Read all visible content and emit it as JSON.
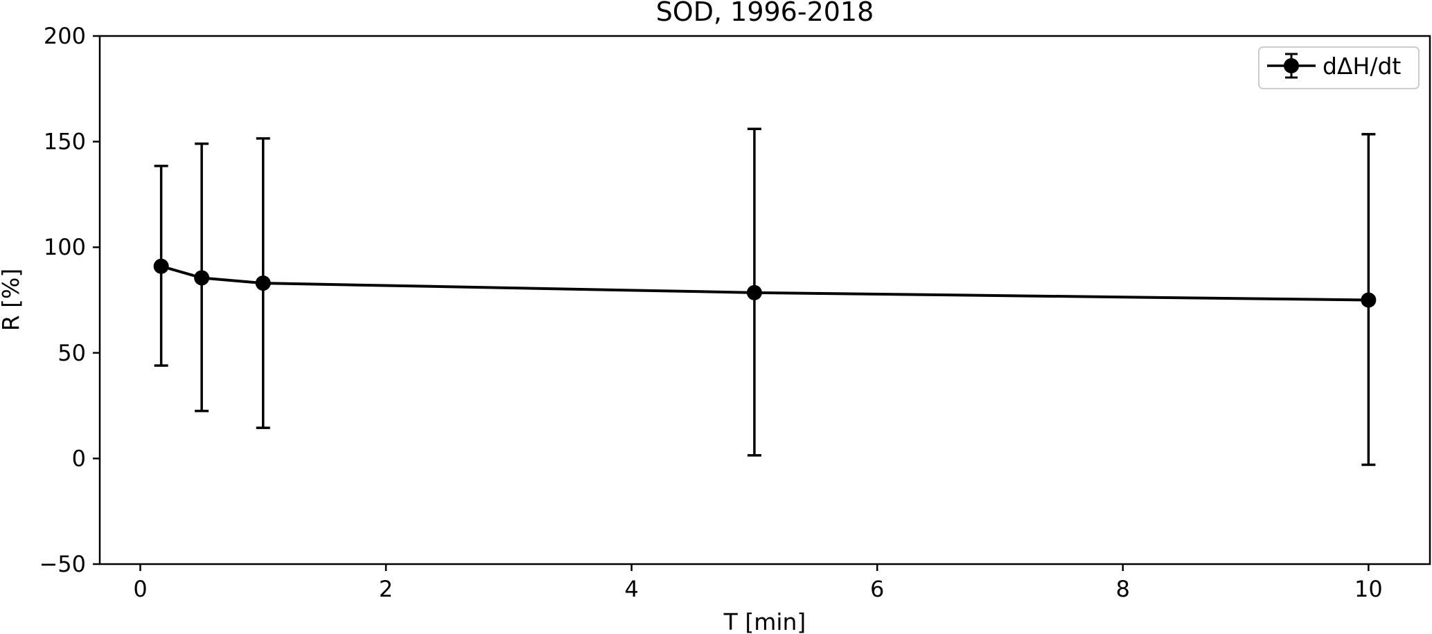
{
  "chart_data": {
    "type": "line",
    "title": "SOD, 1996-2018",
    "xlabel": "T [min]",
    "ylabel": "R [%]",
    "xlim": [
      -0.33,
      10.5
    ],
    "ylim": [
      -50,
      200
    ],
    "xticks": [
      0,
      2,
      4,
      6,
      8,
      10
    ],
    "yticks": [
      -50,
      0,
      50,
      100,
      150,
      200
    ],
    "xtick_labels": [
      "0",
      "2",
      "4",
      "6",
      "8",
      "10"
    ],
    "ytick_labels": [
      "−50",
      "0",
      "50",
      "100",
      "150",
      "200"
    ],
    "grid": false,
    "legend": {
      "position": "top-right"
    },
    "series": [
      {
        "name": "dΔH/dt",
        "color": "#000000",
        "marker": "circle",
        "x": [
          0.17,
          0.5,
          1,
          5,
          10
        ],
        "y": [
          91,
          85.5,
          83,
          78.5,
          75
        ],
        "err_low": [
          44,
          22.5,
          14.5,
          1.5,
          -3
        ],
        "err_high": [
          138.5,
          149,
          151.5,
          156,
          153.5
        ]
      }
    ]
  }
}
